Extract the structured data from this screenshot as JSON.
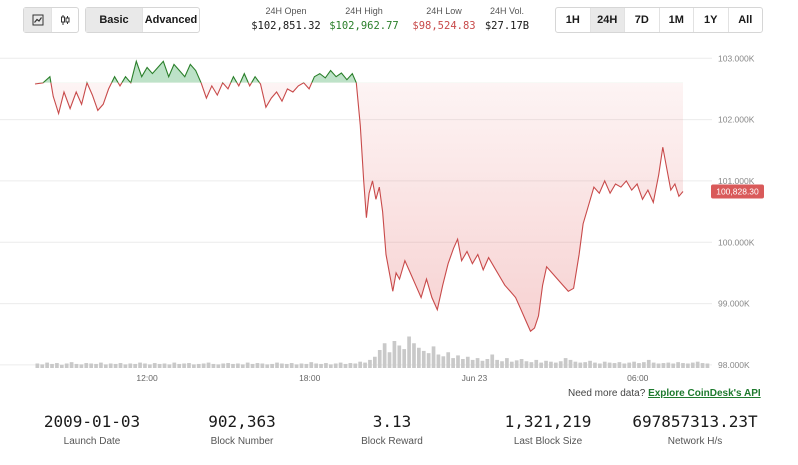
{
  "toolbar": {
    "chart_types": [
      {
        "icon": "line-chart-icon",
        "active": true
      },
      {
        "icon": "candlestick-icon",
        "active": false
      }
    ],
    "modes": [
      "Basic",
      "Advanced"
    ],
    "active_mode": "Basic",
    "ranges": [
      "1H",
      "24H",
      "7D",
      "1M",
      "1Y",
      "All"
    ],
    "active_range": "24H"
  },
  "stats": {
    "open": {
      "label": "24H Open",
      "value": "$102,851.32"
    },
    "high": {
      "label": "24H High",
      "value": "$102,962.77"
    },
    "low": {
      "label": "24H Low",
      "value": "$98,524.83"
    },
    "vol": {
      "label": "24H Vol.",
      "value": "$27.17B"
    }
  },
  "colors": {
    "up": "#2a7f2a",
    "down": "#c84a4a",
    "current_badge": "#d95a5a",
    "volume": "#c9c9c9"
  },
  "chart_data": {
    "type": "area",
    "reference_price": 102600,
    "current_price_label": "100,828.30",
    "ylim": [
      97950,
      103200
    ],
    "y_ticks": [
      98000,
      99000,
      100000,
      101000,
      102000,
      103000
    ],
    "y_tick_labels": [
      "98.000K",
      "99.000K",
      "100.000K",
      "101.000K",
      "102.000K",
      "103.000K"
    ],
    "x_tick_labels": [
      {
        "label": "12:00",
        "t": 0.166
      },
      {
        "label": "18:00",
        "t": 0.407
      },
      {
        "label": "Jun 23",
        "t": 0.651
      },
      {
        "label": "06:00",
        "t": 0.893
      }
    ],
    "price": [
      [
        0.0,
        102580
      ],
      [
        0.012,
        102600
      ],
      [
        0.022,
        102700
      ],
      [
        0.027,
        102380
      ],
      [
        0.035,
        102100
      ],
      [
        0.043,
        102450
      ],
      [
        0.052,
        102180
      ],
      [
        0.061,
        102450
      ],
      [
        0.069,
        102250
      ],
      [
        0.077,
        102600
      ],
      [
        0.085,
        102400
      ],
      [
        0.093,
        102150
      ],
      [
        0.101,
        102250
      ],
      [
        0.109,
        102500
      ],
      [
        0.118,
        102700
      ],
      [
        0.126,
        102550
      ],
      [
        0.134,
        102700
      ],
      [
        0.142,
        102600
      ],
      [
        0.15,
        102950
      ],
      [
        0.158,
        102700
      ],
      [
        0.166,
        102850
      ],
      [
        0.174,
        102750
      ],
      [
        0.182,
        102850
      ],
      [
        0.19,
        102950
      ],
      [
        0.198,
        102700
      ],
      [
        0.206,
        102900
      ],
      [
        0.214,
        102800
      ],
      [
        0.222,
        102700
      ],
      [
        0.23,
        102900
      ],
      [
        0.238,
        102800
      ],
      [
        0.246,
        102600
      ],
      [
        0.254,
        102350
      ],
      [
        0.262,
        102550
      ],
      [
        0.27,
        102400
      ],
      [
        0.278,
        102600
      ],
      [
        0.286,
        102500
      ],
      [
        0.294,
        102700
      ],
      [
        0.302,
        102550
      ],
      [
        0.31,
        102750
      ],
      [
        0.318,
        102550
      ],
      [
        0.326,
        102700
      ],
      [
        0.334,
        102580
      ],
      [
        0.342,
        102200
      ],
      [
        0.35,
        102350
      ],
      [
        0.358,
        102450
      ],
      [
        0.366,
        102300
      ],
      [
        0.374,
        102500
      ],
      [
        0.382,
        102450
      ],
      [
        0.39,
        102550
      ],
      [
        0.398,
        102600
      ],
      [
        0.406,
        102500
      ],
      [
        0.414,
        102700
      ],
      [
        0.422,
        102750
      ],
      [
        0.43,
        102680
      ],
      [
        0.438,
        102800
      ],
      [
        0.446,
        102700
      ],
      [
        0.454,
        102760
      ],
      [
        0.462,
        102650
      ],
      [
        0.47,
        102750
      ],
      [
        0.476,
        102600
      ],
      [
        0.482,
        101900
      ],
      [
        0.487,
        101000
      ],
      [
        0.491,
        100400
      ],
      [
        0.495,
        100800
      ],
      [
        0.5,
        101000
      ],
      [
        0.505,
        100700
      ],
      [
        0.51,
        100900
      ],
      [
        0.515,
        100500
      ],
      [
        0.52,
        99800
      ],
      [
        0.525,
        99500
      ],
      [
        0.53,
        99200
      ],
      [
        0.535,
        99500
      ],
      [
        0.54,
        99400
      ],
      [
        0.548,
        99700
      ],
      [
        0.556,
        99500
      ],
      [
        0.564,
        99300
      ],
      [
        0.572,
        99100
      ],
      [
        0.58,
        99400
      ],
      [
        0.588,
        99100
      ],
      [
        0.596,
        98900
      ],
      [
        0.604,
        99300
      ],
      [
        0.612,
        99650
      ],
      [
        0.62,
        99900
      ],
      [
        0.626,
        100050
      ],
      [
        0.632,
        99700
      ],
      [
        0.64,
        99850
      ],
      [
        0.648,
        99650
      ],
      [
        0.656,
        99800
      ],
      [
        0.664,
        99550
      ],
      [
        0.672,
        99750
      ],
      [
        0.68,
        99600
      ],
      [
        0.688,
        99450
      ],
      [
        0.696,
        99300
      ],
      [
        0.704,
        99200
      ],
      [
        0.712,
        99100
      ],
      [
        0.72,
        98900
      ],
      [
        0.728,
        98700
      ],
      [
        0.734,
        98550
      ],
      [
        0.74,
        98600
      ],
      [
        0.746,
        98800
      ],
      [
        0.752,
        99300
      ],
      [
        0.758,
        99600
      ],
      [
        0.766,
        99500
      ],
      [
        0.774,
        99400
      ],
      [
        0.782,
        99300
      ],
      [
        0.79,
        99200
      ],
      [
        0.798,
        99250
      ],
      [
        0.806,
        99800
      ],
      [
        0.812,
        100300
      ],
      [
        0.82,
        100600
      ],
      [
        0.828,
        100900
      ],
      [
        0.836,
        100800
      ],
      [
        0.844,
        101000
      ],
      [
        0.852,
        100800
      ],
      [
        0.86,
        100950
      ],
      [
        0.868,
        100900
      ],
      [
        0.876,
        101000
      ],
      [
        0.884,
        100850
      ],
      [
        0.892,
        100950
      ],
      [
        0.9,
        100700
      ],
      [
        0.908,
        100850
      ],
      [
        0.916,
        100650
      ],
      [
        0.924,
        101100
      ],
      [
        0.93,
        101550
      ],
      [
        0.936,
        101200
      ],
      [
        0.942,
        100850
      ],
      [
        0.948,
        100950
      ],
      [
        0.954,
        100750
      ],
      [
        0.96,
        100828
      ]
    ],
    "volume": [
      0.1,
      0.08,
      0.12,
      0.09,
      0.11,
      0.07,
      0.1,
      0.13,
      0.09,
      0.08,
      0.11,
      0.1,
      0.09,
      0.12,
      0.08,
      0.1,
      0.09,
      0.11,
      0.08,
      0.1,
      0.09,
      0.12,
      0.1,
      0.08,
      0.11,
      0.09,
      0.1,
      0.08,
      0.12,
      0.09,
      0.1,
      0.11,
      0.08,
      0.09,
      0.1,
      0.12,
      0.09,
      0.08,
      0.1,
      0.11,
      0.09,
      0.1,
      0.08,
      0.12,
      0.09,
      0.11,
      0.1,
      0.08,
      0.09,
      0.12,
      0.1,
      0.09,
      0.11,
      0.08,
      0.1,
      0.09,
      0.13,
      0.1,
      0.09,
      0.11,
      0.08,
      0.1,
      0.12,
      0.09,
      0.11,
      0.1,
      0.14,
      0.12,
      0.18,
      0.25,
      0.4,
      0.55,
      0.35,
      0.6,
      0.5,
      0.42,
      0.7,
      0.55,
      0.45,
      0.38,
      0.33,
      0.48,
      0.3,
      0.26,
      0.35,
      0.22,
      0.28,
      0.2,
      0.25,
      0.18,
      0.22,
      0.16,
      0.2,
      0.3,
      0.18,
      0.15,
      0.22,
      0.14,
      0.17,
      0.2,
      0.15,
      0.13,
      0.18,
      0.12,
      0.16,
      0.14,
      0.12,
      0.15,
      0.22,
      0.18,
      0.14,
      0.12,
      0.13,
      0.16,
      0.12,
      0.1,
      0.14,
      0.12,
      0.11,
      0.13,
      0.1,
      0.12,
      0.14,
      0.11,
      0.13,
      0.18,
      0.12,
      0.1,
      0.11,
      0.12,
      0.1,
      0.13,
      0.11,
      0.1,
      0.12,
      0.14,
      0.11,
      0.1
    ]
  },
  "more_data": {
    "text": "Need more data?",
    "link": "Explore CoinDesk's API"
  },
  "footer": [
    {
      "value": "2009-01-03",
      "label": "Launch Date"
    },
    {
      "value": "902,363",
      "label": "Block Number"
    },
    {
      "value": "3.13",
      "label": "Block Reward"
    },
    {
      "value": "1,321,219",
      "label": "Last Block Size"
    },
    {
      "value": "697857313.23T",
      "label": "Network H/s"
    }
  ]
}
